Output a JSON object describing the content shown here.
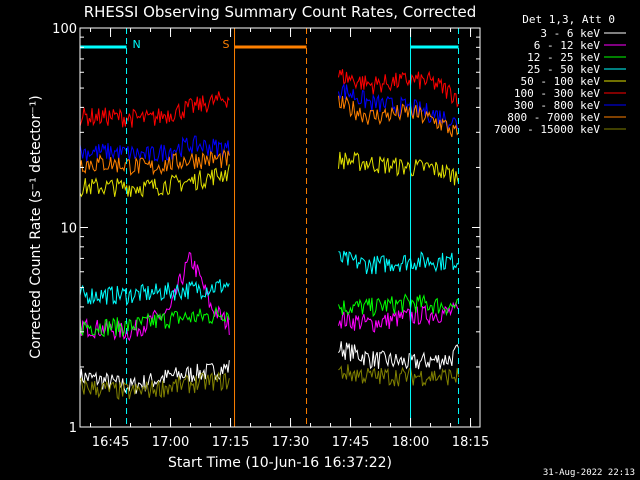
{
  "chart_data": {
    "type": "line",
    "title": "RHESSI Observing Summary Count Rates, Corrected",
    "xlabel": "Start Time (10-Jun-16 16:37:22)",
    "ylabel": "Corrected Count Rate (s⁻¹ detector⁻¹)",
    "y_scale": "log",
    "ylim": [
      1,
      100
    ],
    "y_ticks": [
      "1",
      "10",
      "100"
    ],
    "xlim": [
      "16:37:22",
      "18:17:22"
    ],
    "x_ticks": [
      "16:45",
      "17:00",
      "17:15",
      "17:30",
      "17:45",
      "18:00",
      "18:15"
    ],
    "timestamp": "31-Aug-2022 22:13",
    "legend_title": "Det 1,3, Att 0",
    "legend_position": "right",
    "data_gap": [
      "17:15:40",
      "17:42:00"
    ],
    "flags": [
      {
        "label": "N",
        "color": "#00ffff",
        "intervals": [
          [
            "16:37:22",
            "16:49:00"
          ],
          [
            "18:00:00",
            "18:12:00"
          ]
        ]
      },
      {
        "label": "S",
        "color": "#ff8000",
        "intervals": [
          [
            "17:16:00",
            "17:34:00"
          ]
        ]
      }
    ],
    "series": [
      {
        "name": "3 - 6 keV",
        "color": "#ffffff",
        "segments": [
          {
            "x": [
              "16:37:22",
              "16:50",
              "17:00",
              "17:10",
              "17:15"
            ],
            "y": [
              1.8,
              1.6,
              1.8,
              1.9,
              2.0
            ]
          },
          {
            "x": [
              "17:42",
              "17:50",
              "18:00",
              "18:10",
              "18:12"
            ],
            "y": [
              2.5,
              2.2,
              2.1,
              2.2,
              2.4
            ]
          }
        ]
      },
      {
        "name": "6 - 12 keV",
        "color": "#ff00ff",
        "segments": [
          {
            "x": [
              "16:37:22",
              "16:50",
              "17:00",
              "17:05",
              "17:10",
              "17:15"
            ],
            "y": [
              3.2,
              3.0,
              3.8,
              7.0,
              4.0,
              3.2
            ]
          },
          {
            "x": [
              "17:42",
              "17:50",
              "18:00",
              "18:12"
            ],
            "y": [
              3.5,
              3.3,
              3.6,
              3.8
            ]
          }
        ]
      },
      {
        "name": "12 - 25 keV",
        "color": "#00ff00",
        "segments": [
          {
            "x": [
              "16:37:22",
              "16:50",
              "17:00",
              "17:10",
              "17:15"
            ],
            "y": [
              3.2,
              3.2,
              3.5,
              3.6,
              3.8
            ]
          },
          {
            "x": [
              "17:42",
              "17:50",
              "18:00",
              "18:12"
            ],
            "y": [
              4.0,
              4.0,
              4.2,
              4.0
            ]
          }
        ]
      },
      {
        "name": "25 - 50 keV",
        "color": "#00ffff",
        "segments": [
          {
            "x": [
              "16:37:22",
              "16:50",
              "17:00",
              "17:10",
              "17:15"
            ],
            "y": [
              4.6,
              4.6,
              4.8,
              5.0,
              5.2
            ]
          },
          {
            "x": [
              "17:42",
              "17:50",
              "18:00",
              "18:12"
            ],
            "y": [
              7.0,
              6.5,
              6.8,
              6.8
            ]
          }
        ]
      },
      {
        "name": "50 - 100 keV",
        "color": "#e0e000",
        "segments": [
          {
            "x": [
              "16:37:22",
              "16:45",
              "16:55",
              "17:05",
              "17:10",
              "17:15"
            ],
            "y": [
              16,
              16,
              16,
              17,
              18,
              19
            ]
          },
          {
            "x": [
              "17:42",
              "17:50",
              "18:00",
              "18:05",
              "18:12"
            ],
            "y": [
              22,
              21,
              20,
              20,
              18
            ]
          }
        ]
      },
      {
        "name": "100 - 300 keV",
        "color": "#ff0000",
        "segments": [
          {
            "x": [
              "16:37:22",
              "16:45",
              "16:55",
              "17:05",
              "17:15"
            ],
            "y": [
              36,
              36,
              35,
              40,
              45
            ]
          },
          {
            "x": [
              "17:42",
              "17:50",
              "18:00",
              "18:05",
              "18:12"
            ],
            "y": [
              58,
              52,
              55,
              54,
              45
            ]
          }
        ]
      },
      {
        "name": "300 - 800 keV",
        "color": "#0000ff",
        "segments": [
          {
            "x": [
              "16:37:22",
              "16:45",
              "16:55",
              "17:05",
              "17:15"
            ],
            "y": [
              24,
              24,
              23,
              26,
              25
            ]
          },
          {
            "x": [
              "17:42",
              "17:50",
              "18:00",
              "18:08",
              "18:12"
            ],
            "y": [
              50,
              42,
              40,
              36,
              33
            ]
          }
        ]
      },
      {
        "name": "800 - 7000 keV",
        "color": "#ff8000",
        "segments": [
          {
            "x": [
              "16:37:22",
              "16:45",
              "16:55",
              "17:05",
              "17:15"
            ],
            "y": [
              21,
              21,
              20,
              22,
              22
            ]
          },
          {
            "x": [
              "17:42",
              "17:50",
              "18:00",
              "18:08",
              "18:12"
            ],
            "y": [
              42,
              36,
              38,
              33,
              29
            ]
          }
        ]
      },
      {
        "name": "7000 - 15000 keV",
        "color": "#808000",
        "segments": [
          {
            "x": [
              "16:37:22",
              "16:50",
              "17:00",
              "17:10",
              "17:15"
            ],
            "y": [
              1.6,
              1.5,
              1.6,
              1.7,
              1.7
            ]
          },
          {
            "x": [
              "17:42",
              "17:50",
              "18:00",
              "18:12"
            ],
            "y": [
              1.9,
              1.8,
              1.8,
              1.8
            ]
          }
        ]
      }
    ]
  }
}
